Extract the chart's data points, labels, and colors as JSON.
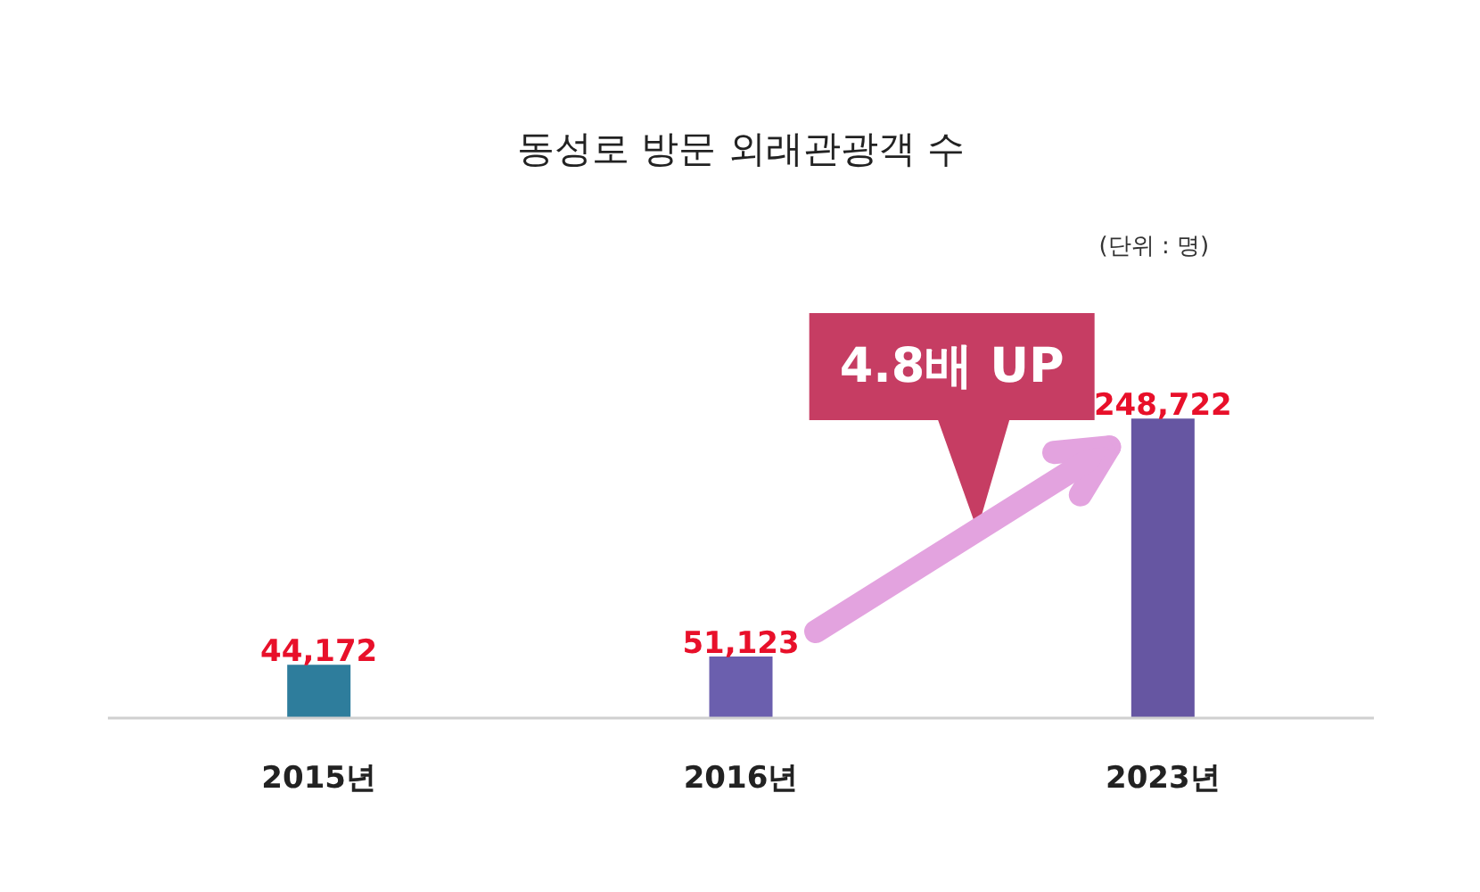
{
  "chart_data": {
    "type": "bar",
    "title": "동성로 방문 외래관광객 수",
    "categories": [
      "2015년",
      "2016년",
      "2023년"
    ],
    "values": [
      44172,
      51123,
      248722
    ],
    "colors": [
      "#2e7d9c",
      "#6b5fae",
      "#6656a2"
    ],
    "value_labels": [
      "44,172",
      "51,123",
      "248,722"
    ],
    "annotations": [
      "4.8배 UP",
      "(단위 : 명)"
    ]
  }
}
